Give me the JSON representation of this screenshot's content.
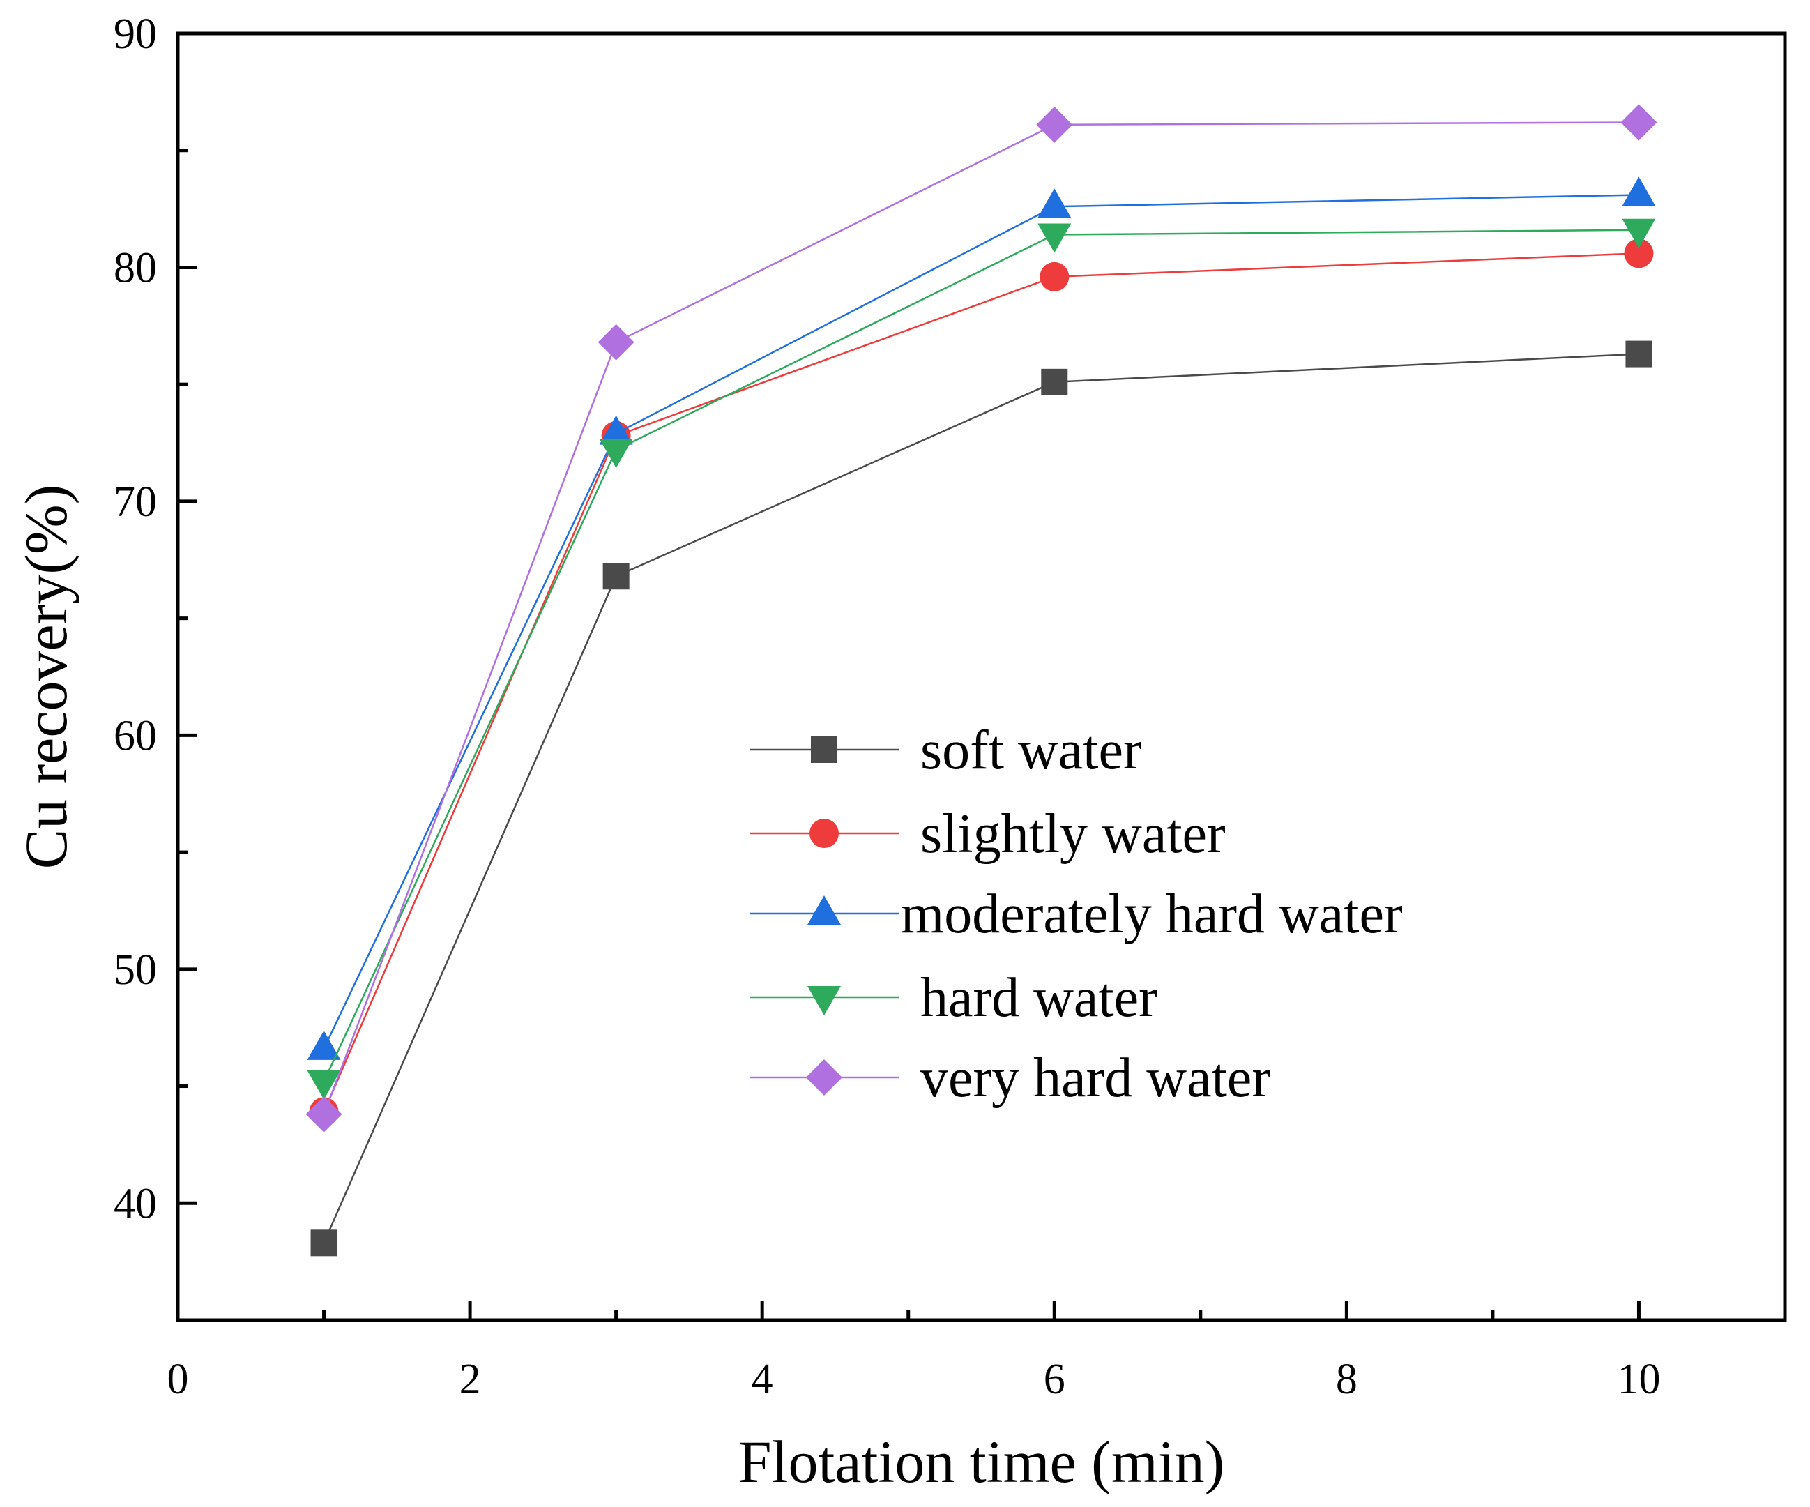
{
  "chart_data": {
    "type": "line",
    "title": "",
    "xlabel": "Flotation time (min)",
    "ylabel": "Cu recovery(%)",
    "xlim": [
      0,
      11
    ],
    "ylim": [
      35,
      90
    ],
    "xticks": [
      0,
      2,
      4,
      6,
      8,
      10
    ],
    "yticks": [
      40,
      50,
      60,
      70,
      80,
      90
    ],
    "xtick_labels": [
      "0",
      "2",
      "4",
      "6",
      "8",
      "10"
    ],
    "ytick_labels": [
      "40",
      "50",
      "60",
      "70",
      "80",
      "90"
    ],
    "x": [
      1,
      3,
      6,
      10
    ],
    "legend_position": "center-right",
    "series": [
      {
        "name": "soft water",
        "values": [
          38.3,
          66.8,
          75.1,
          76.3
        ],
        "color": "#4a4a4a",
        "marker": "square"
      },
      {
        "name": "slightly water",
        "values": [
          43.9,
          72.8,
          79.6,
          80.6
        ],
        "color": "#ee3b3b",
        "marker": "circle"
      },
      {
        "name": "moderately hard water",
        "values": [
          46.6,
          72.9,
          82.6,
          83.1
        ],
        "color": "#1f6fde",
        "marker": "triangle-up"
      },
      {
        "name": "hard water",
        "values": [
          45.2,
          72.2,
          81.4,
          81.6
        ],
        "color": "#2eaa5c",
        "marker": "triangle-down"
      },
      {
        "name": "very hard water",
        "values": [
          43.8,
          76.8,
          86.1,
          86.2
        ],
        "color": "#b070e0",
        "marker": "diamond"
      }
    ]
  }
}
